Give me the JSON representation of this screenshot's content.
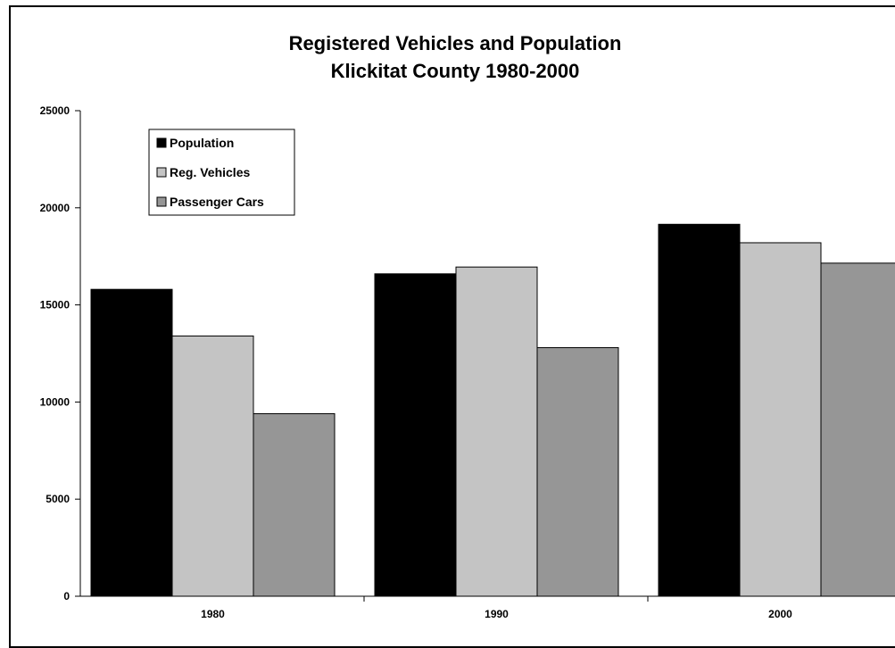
{
  "chart_data": {
    "type": "bar",
    "title_line1": "Registered Vehicles and Population",
    "title_line2": "Klickitat County 1980-2000",
    "categories": [
      "1980",
      "1990",
      "2000"
    ],
    "series": [
      {
        "name": "Population",
        "values": [
          15800,
          16600,
          19150
        ],
        "color": "#000000"
      },
      {
        "name": "Reg. Vehicles",
        "values": [
          13400,
          16950,
          18200
        ],
        "color": "#c4c4c4"
      },
      {
        "name": "Passenger Cars",
        "values": [
          9400,
          12800,
          17150
        ],
        "color": "#969696"
      }
    ],
    "ylim": [
      0,
      25000
    ],
    "yticks": [
      "0",
      "5000",
      "10000",
      "15000",
      "20000",
      "25000"
    ],
    "grid": false,
    "legend_position": "top-left"
  }
}
